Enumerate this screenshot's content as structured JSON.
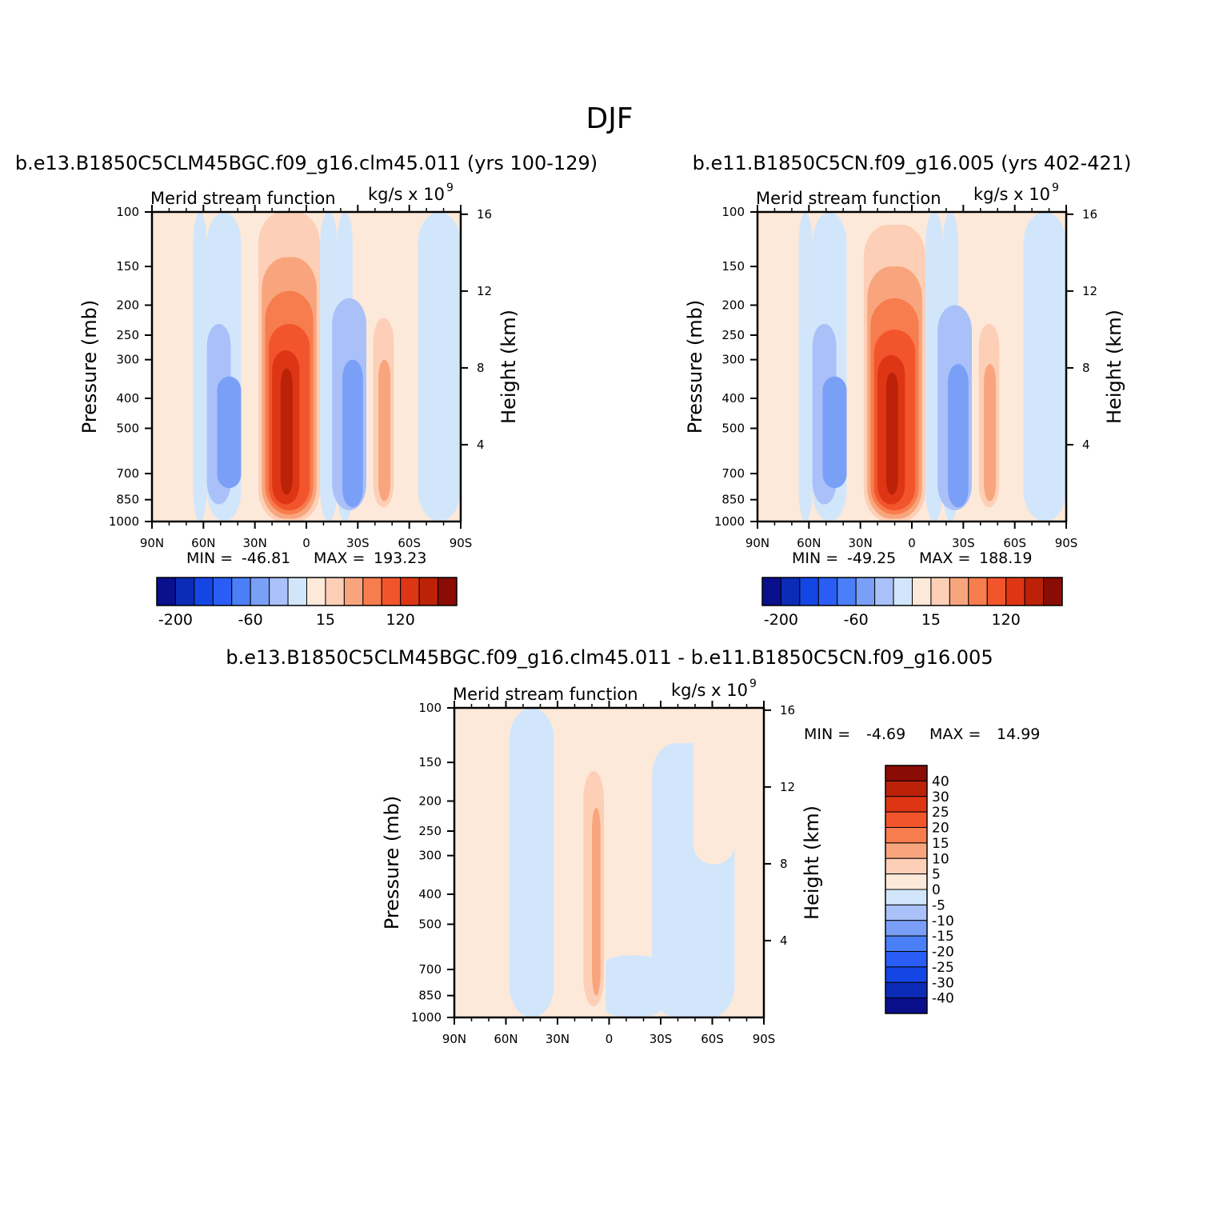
{
  "figure": {
    "title": "DJF"
  },
  "palette_ctrl": [
    "#0a0f8c",
    "#0c2cb8",
    "#1446e6",
    "#2a5df5",
    "#4a7ff8",
    "#7a9ff7",
    "#a9c1f8",
    "#d2e6fb",
    "#fde9d9",
    "#fdcfb6",
    "#f8a57d",
    "#f77c4e",
    "#f2552c",
    "#de3614",
    "#bb2208",
    "#8a0c05"
  ],
  "palette_diff": [
    "#0a0f8c",
    "#0c2cb8",
    "#1446e6",
    "#2a5df5",
    "#4a7ff8",
    "#7a9ff7",
    "#a9c1f8",
    "#d2e6fb",
    "#fde9d9",
    "#fdcfb6",
    "#f8a57d",
    "#f77c4e",
    "#f2552c",
    "#de3614",
    "#bb2208",
    "#8a0c05"
  ],
  "chart_data": [
    {
      "type": "heatmap",
      "panel_title": "b.e13.B1850C5CLM45BGC.f09_g16.clm45.011 (yrs 100-129)",
      "left_string": "Merid stream function",
      "right_string": "kg/s x 10",
      "right_exp": "9",
      "ylabel": "Pressure (mb)",
      "ylabel_right": "Height (km)",
      "x_ticks": [
        "90N",
        "60N",
        "30N",
        "0",
        "30S",
        "60S",
        "90S"
      ],
      "y_ticks": [
        100,
        150,
        200,
        250,
        300,
        400,
        500,
        700,
        850,
        1000
      ],
      "y_right_ticks": [
        4,
        8,
        12,
        16
      ],
      "stats": {
        "min_label": "MIN =",
        "min": "-46.81",
        "max_label": "MAX =",
        "max": "193.23"
      },
      "colorbar_labels": [
        "-200",
        "-60",
        "15",
        "120"
      ],
      "cells": [
        {
          "x0": 90,
          "x1": 66,
          "p0": 100,
          "p1": 1000,
          "level": 8
        },
        {
          "x0": 66,
          "x1": 58,
          "p0": 100,
          "p1": 1000,
          "level": 7
        },
        {
          "x0": 58,
          "x1": 38,
          "p0": 100,
          "p1": 1000,
          "level": 7
        },
        {
          "x0": 58,
          "x1": 44,
          "p0": 230,
          "p1": 880,
          "level": 6
        },
        {
          "x0": 52,
          "x1": 38,
          "p0": 340,
          "p1": 780,
          "level": 5
        },
        {
          "x0": 38,
          "x1": 28,
          "p0": 100,
          "p1": 1000,
          "level": 8
        },
        {
          "x0": 28,
          "x1": -8,
          "p0": 100,
          "p1": 1000,
          "level": 9
        },
        {
          "x0": 26,
          "x1": -6,
          "p0": 140,
          "p1": 980,
          "level": 10
        },
        {
          "x0": 24,
          "x1": -4,
          "p0": 180,
          "p1": 950,
          "level": 11
        },
        {
          "x0": 22,
          "x1": -2,
          "p0": 230,
          "p1": 920,
          "level": 12
        },
        {
          "x0": 20,
          "x1": 4,
          "p0": 280,
          "p1": 880,
          "level": 13
        },
        {
          "x0": 15,
          "x1": 8,
          "p0": 320,
          "p1": 820,
          "level": 14
        },
        {
          "x0": -8,
          "x1": -18,
          "p0": 100,
          "p1": 1000,
          "level": 7
        },
        {
          "x0": -18,
          "x1": -27,
          "p0": 100,
          "p1": 1000,
          "level": 7
        },
        {
          "x0": -15,
          "x1": -35,
          "p0": 190,
          "p1": 920,
          "level": 6
        },
        {
          "x0": -21,
          "x1": -33,
          "p0": 300,
          "p1": 900,
          "level": 5
        },
        {
          "x0": -35,
          "x1": -65,
          "p0": 100,
          "p1": 1000,
          "level": 8
        },
        {
          "x0": -39,
          "x1": -51,
          "p0": 220,
          "p1": 900,
          "level": 9
        },
        {
          "x0": -42,
          "x1": -49,
          "p0": 300,
          "p1": 860,
          "level": 10
        },
        {
          "x0": -65,
          "x1": -90,
          "p0": 100,
          "p1": 1000,
          "level": 7
        }
      ]
    },
    {
      "type": "heatmap",
      "panel_title": "b.e11.B1850C5CN.f09_g16.005 (yrs 402-421)",
      "left_string": "Merid stream function",
      "right_string": "kg/s x 10",
      "right_exp": "9",
      "ylabel": "Pressure (mb)",
      "ylabel_right": "Height (km)",
      "x_ticks": [
        "90N",
        "60N",
        "30N",
        "0",
        "30S",
        "60S",
        "90S"
      ],
      "y_ticks": [
        100,
        150,
        200,
        250,
        300,
        400,
        500,
        700,
        850,
        1000
      ],
      "y_right_ticks": [
        4,
        8,
        12,
        16
      ],
      "stats": {
        "min_label": "MIN =",
        "min": "-49.25",
        "max_label": "MAX =",
        "max": "188.19"
      },
      "colorbar_labels": [
        "-200",
        "-60",
        "15",
        "120"
      ],
      "cells": [
        {
          "x0": 90,
          "x1": 66,
          "p0": 100,
          "p1": 1000,
          "level": 8
        },
        {
          "x0": 66,
          "x1": 58,
          "p0": 100,
          "p1": 1000,
          "level": 7
        },
        {
          "x0": 58,
          "x1": 38,
          "p0": 100,
          "p1": 1000,
          "level": 7
        },
        {
          "x0": 58,
          "x1": 44,
          "p0": 230,
          "p1": 880,
          "level": 6
        },
        {
          "x0": 52,
          "x1": 38,
          "p0": 340,
          "p1": 780,
          "level": 5
        },
        {
          "x0": 38,
          "x1": 28,
          "p0": 100,
          "p1": 1000,
          "level": 8
        },
        {
          "x0": 28,
          "x1": -8,
          "p0": 110,
          "p1": 1000,
          "level": 9
        },
        {
          "x0": 26,
          "x1": -6,
          "p0": 150,
          "p1": 980,
          "level": 10
        },
        {
          "x0": 24,
          "x1": -4,
          "p0": 190,
          "p1": 950,
          "level": 11
        },
        {
          "x0": 22,
          "x1": -2,
          "p0": 240,
          "p1": 920,
          "level": 12
        },
        {
          "x0": 20,
          "x1": 4,
          "p0": 290,
          "p1": 880,
          "level": 13
        },
        {
          "x0": 15,
          "x1": 8,
          "p0": 330,
          "p1": 820,
          "level": 14
        },
        {
          "x0": -8,
          "x1": -18,
          "p0": 100,
          "p1": 1000,
          "level": 7
        },
        {
          "x0": -18,
          "x1": -27,
          "p0": 100,
          "p1": 1000,
          "level": 7
        },
        {
          "x0": -15,
          "x1": -35,
          "p0": 200,
          "p1": 920,
          "level": 6
        },
        {
          "x0": -21,
          "x1": -33,
          "p0": 310,
          "p1": 900,
          "level": 5
        },
        {
          "x0": -35,
          "x1": -65,
          "p0": 100,
          "p1": 1000,
          "level": 8
        },
        {
          "x0": -39,
          "x1": -51,
          "p0": 230,
          "p1": 900,
          "level": 9
        },
        {
          "x0": -42,
          "x1": -49,
          "p0": 310,
          "p1": 860,
          "level": 10
        },
        {
          "x0": -65,
          "x1": -90,
          "p0": 100,
          "p1": 1000,
          "level": 7
        }
      ]
    },
    {
      "type": "heatmap",
      "panel_title": "b.e13.B1850C5CLM45BGC.f09_g16.clm45.011 - b.e11.B1850C5CN.f09_g16.005",
      "left_string": "Merid stream function",
      "right_string": "kg/s x 10",
      "right_exp": "9",
      "ylabel": "Pressure (mb)",
      "ylabel_right": "Height (km)",
      "x_ticks": [
        "90N",
        "60N",
        "30N",
        "0",
        "30S",
        "60S",
        "90S"
      ],
      "y_ticks": [
        100,
        150,
        200,
        250,
        300,
        400,
        500,
        700,
        850,
        1000
      ],
      "y_right_ticks": [
        4,
        8,
        12,
        16
      ],
      "stats": {
        "min_label": "MIN =",
        "min": "-4.69",
        "max_label": "MAX =",
        "max": "14.99"
      },
      "colorbar_labels": [
        "40",
        "30",
        "25",
        "20",
        "15",
        "10",
        "5",
        "0",
        "-5",
        "-10",
        "-15",
        "-20",
        "-25",
        "-30",
        "-40"
      ],
      "cells": [
        {
          "x0": 90,
          "x1": 58,
          "p0": 100,
          "p1": 1000,
          "level": 8
        },
        {
          "x0": 58,
          "x1": 32,
          "p0": 100,
          "p1": 1000,
          "level": 7
        },
        {
          "x0": 32,
          "x1": -49,
          "p0": 100,
          "p1": 1000,
          "level": 8
        },
        {
          "x0": 15,
          "x1": 3,
          "p0": 160,
          "p1": 920,
          "level": 9
        },
        {
          "x0": 10,
          "x1": 5,
          "p0": 210,
          "p1": 850,
          "level": 10
        },
        {
          "x0": 2,
          "x1": -30,
          "p0": 630,
          "p1": 1000,
          "level": 7
        },
        {
          "x0": -25,
          "x1": -73,
          "p0": 130,
          "p1": 1000,
          "level": 7
        },
        {
          "x0": -49,
          "x1": -73,
          "p0": 100,
          "p1": 320,
          "level": 8
        },
        {
          "x0": -73,
          "x1": -90,
          "p0": 100,
          "p1": 1000,
          "level": 8
        }
      ]
    }
  ]
}
